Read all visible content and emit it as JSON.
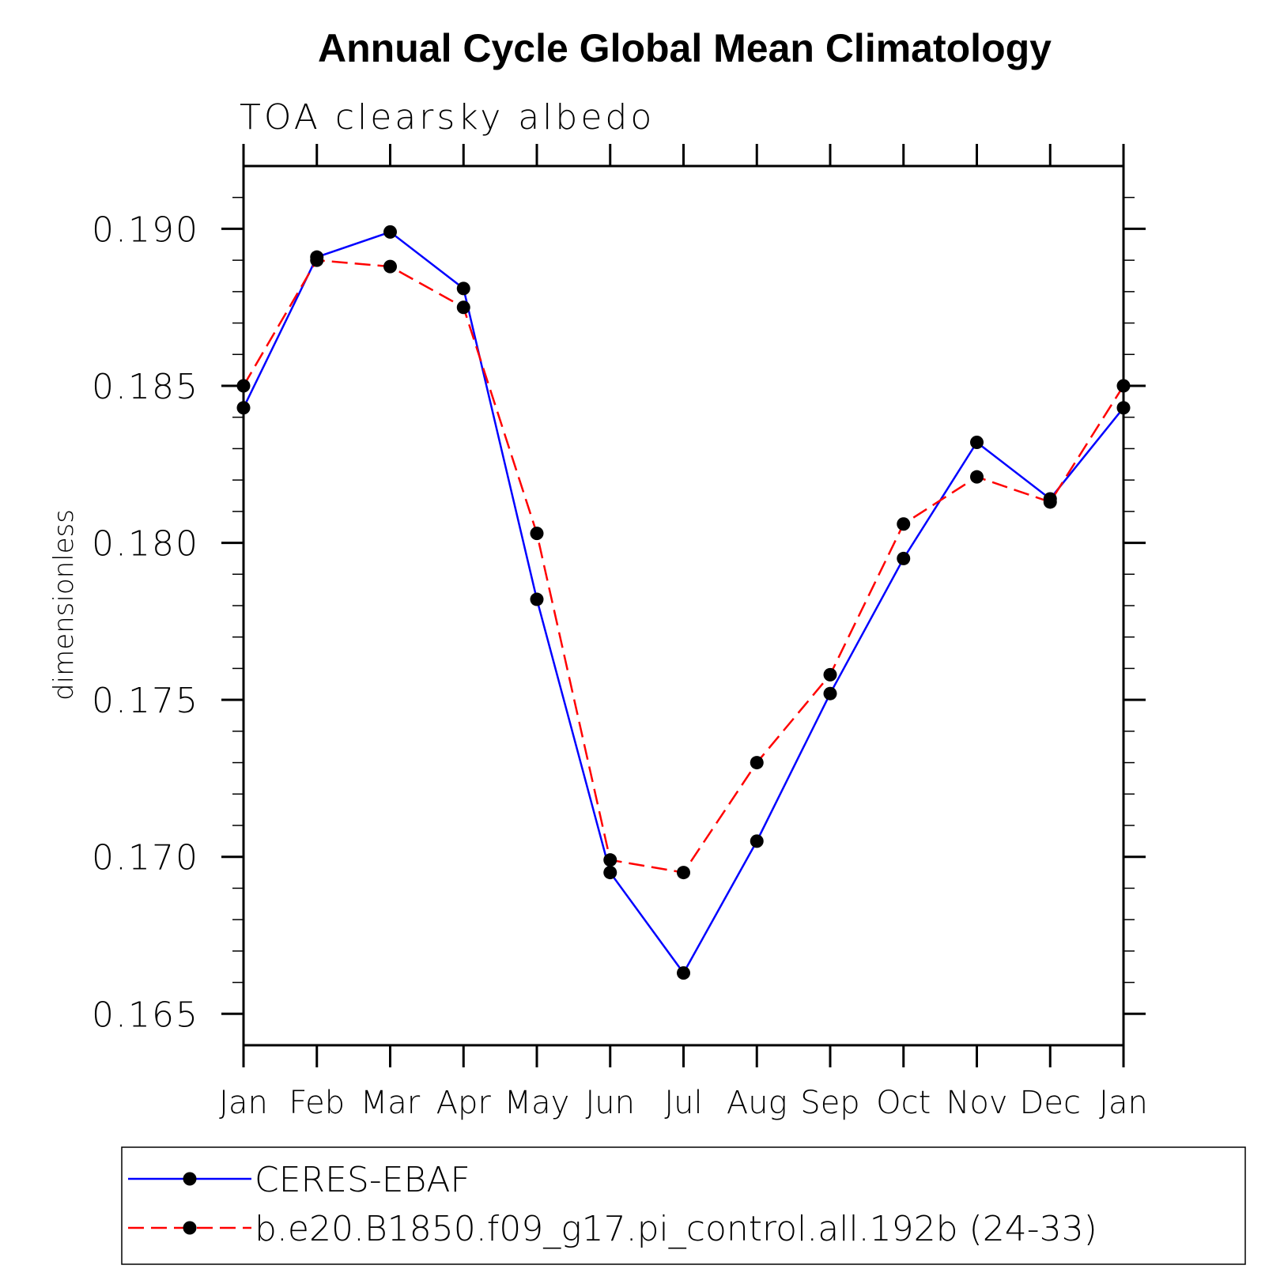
{
  "chart_data": {
    "type": "line",
    "title": "Annual Cycle Global Mean Climatology",
    "subtitle": "TOA clearsky albedo",
    "xlabel": "",
    "ylabel": "dimensionless",
    "categories": [
      "Jan",
      "Feb",
      "Mar",
      "Apr",
      "May",
      "Jun",
      "Jul",
      "Aug",
      "Sep",
      "Oct",
      "Nov",
      "Dec",
      "Jan"
    ],
    "ylim": [
      0.164,
      0.192
    ],
    "yticks": [
      0.165,
      0.17,
      0.175,
      0.18,
      0.185,
      0.19
    ],
    "ytick_labels": [
      "0.165",
      "0.170",
      "0.175",
      "0.180",
      "0.185",
      "0.190"
    ],
    "minor_ytick_step": 0.001,
    "grid": false,
    "legend_position": "bottom",
    "series": [
      {
        "name": "CERES-EBAF",
        "color": "#0000ff",
        "dash": "solid",
        "marker": "circle",
        "values": [
          0.1843,
          0.1891,
          0.1899,
          0.1881,
          0.1782,
          0.1695,
          0.1663,
          0.1705,
          0.1752,
          0.1795,
          0.1832,
          0.1814,
          0.1843
        ]
      },
      {
        "name": "b.e20.B1850.f09_g17.pi_control.all.192b (24-33)",
        "color": "#ff0000",
        "dash": "dashed",
        "marker": "circle",
        "values": [
          0.185,
          0.189,
          0.1888,
          0.1875,
          0.1803,
          0.1699,
          0.1695,
          0.173,
          0.1758,
          0.1806,
          0.1821,
          0.1813,
          0.185
        ]
      }
    ]
  }
}
